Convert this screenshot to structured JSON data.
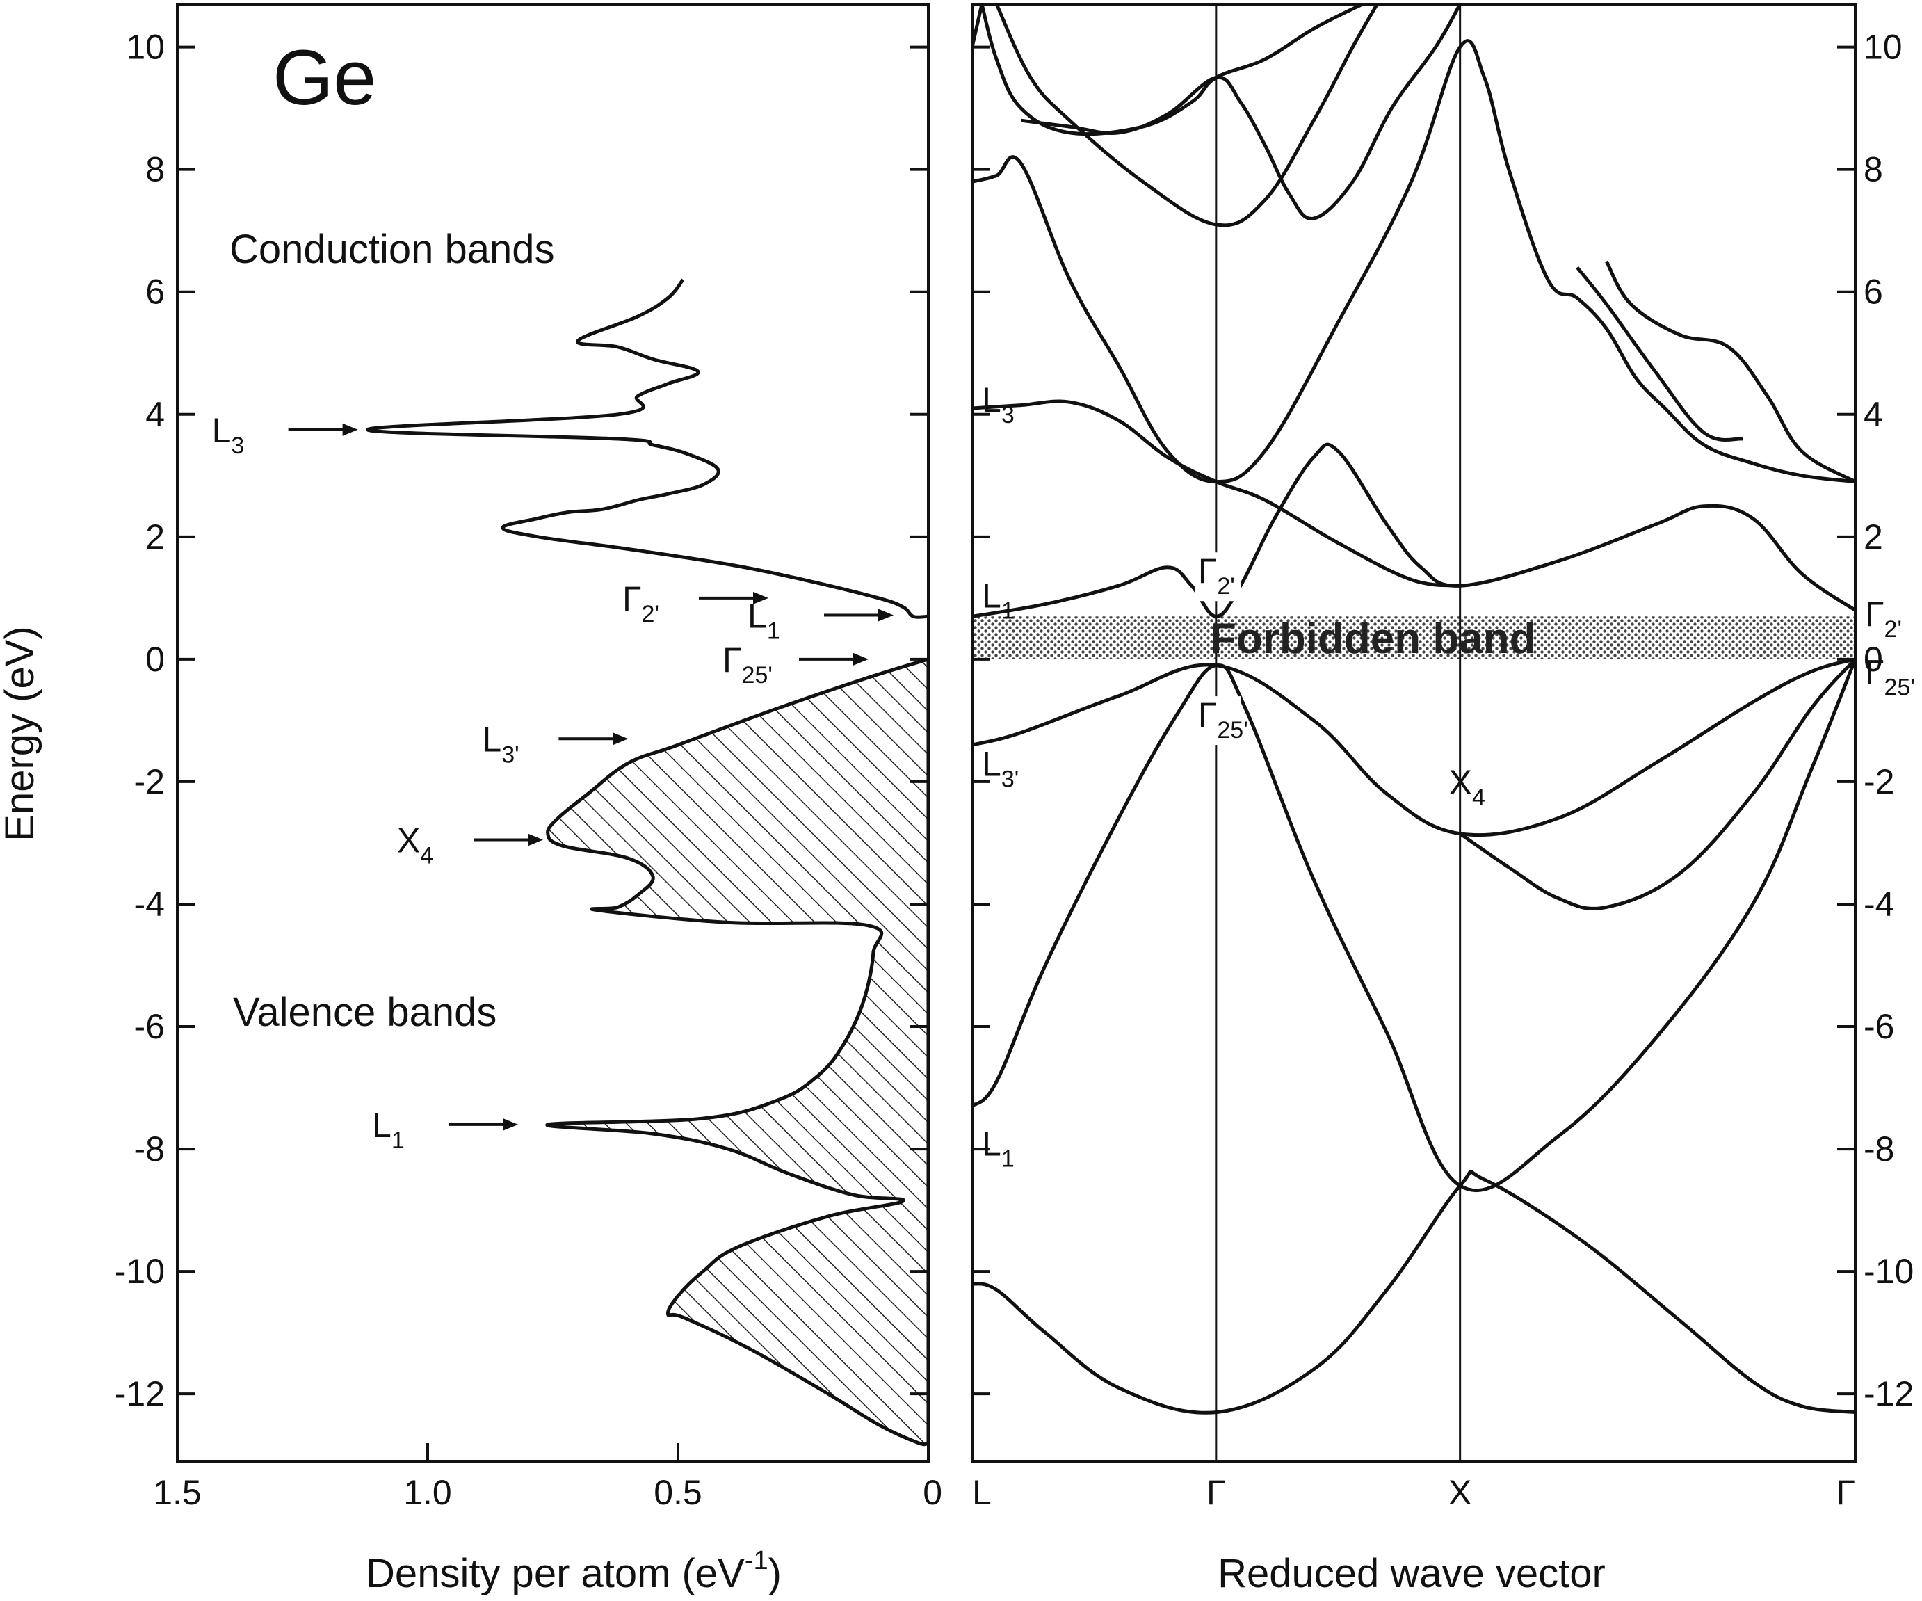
{
  "chart_data": [
    {
      "type": "area",
      "material": "Ge",
      "xlabel": "Density per atom (eV",
      "xlabel_sup": "-1",
      "xlabel_tail": ")",
      "ylabel": "Energy (eV)",
      "xlim": [
        1.5,
        0
      ],
      "ylim": [
        -13.1,
        10.7
      ],
      "x_ticks": [
        1.5,
        1.0,
        0.5,
        0
      ],
      "x_tick_labels": [
        "1.5",
        "1.0",
        "0.5",
        "0"
      ],
      "y_ticks": [
        10,
        8,
        6,
        4,
        2,
        0,
        -2,
        -4,
        -6,
        -8,
        -10,
        -12
      ],
      "y_tick_labels": [
        "10",
        "8",
        "6",
        "4",
        "2",
        "0",
        "-2",
        "-4",
        "-6",
        "-8",
        "-10",
        "-12"
      ],
      "region_labels": {
        "conduction": "Conduction bands",
        "valence": "Valence bands"
      },
      "series": [
        {
          "name": "conduction",
          "fill": "none",
          "points": [
            [
              0.49,
              6.2
            ],
            [
              0.52,
              5.9
            ],
            [
              0.58,
              5.6
            ],
            [
              0.7,
              5.2
            ],
            [
              0.62,
              5.1
            ],
            [
              0.55,
              4.9
            ],
            [
              0.46,
              4.7
            ],
            [
              0.52,
              4.5
            ],
            [
              0.58,
              4.3
            ],
            [
              0.62,
              4.0
            ],
            [
              1.12,
              3.75
            ],
            [
              0.62,
              3.6
            ],
            [
              0.55,
              3.5
            ],
            [
              0.48,
              3.35
            ],
            [
              0.42,
              3.1
            ],
            [
              0.45,
              2.85
            ],
            [
              0.52,
              2.7
            ],
            [
              0.58,
              2.6
            ],
            [
              0.65,
              2.45
            ],
            [
              0.72,
              2.4
            ],
            [
              0.78,
              2.3
            ],
            [
              0.85,
              2.15
            ],
            [
              0.78,
              2.0
            ],
            [
              0.6,
              1.8
            ],
            [
              0.4,
              1.55
            ],
            [
              0.25,
              1.3
            ],
            [
              0.1,
              1.0
            ],
            [
              0.05,
              0.85
            ],
            [
              0.03,
              0.7
            ],
            [
              0,
              0.7
            ]
          ]
        },
        {
          "name": "valence",
          "fill": "hatched",
          "points": [
            [
              0,
              0
            ],
            [
              0.12,
              -0.3
            ],
            [
              0.3,
              -0.8
            ],
            [
              0.5,
              -1.4
            ],
            [
              0.6,
              -1.7
            ],
            [
              0.68,
              -2.2
            ],
            [
              0.74,
              -2.6
            ],
            [
              0.76,
              -2.85
            ],
            [
              0.73,
              -3.05
            ],
            [
              0.6,
              -3.25
            ],
            [
              0.55,
              -3.55
            ],
            [
              0.58,
              -3.85
            ],
            [
              0.62,
              -4.05
            ],
            [
              0.66,
              -4.1
            ],
            [
              0.4,
              -4.3
            ],
            [
              0.12,
              -4.35
            ],
            [
              0.11,
              -4.8
            ],
            [
              0.13,
              -5.6
            ],
            [
              0.17,
              -6.3
            ],
            [
              0.22,
              -6.8
            ],
            [
              0.3,
              -7.2
            ],
            [
              0.45,
              -7.5
            ],
            [
              0.76,
              -7.6
            ],
            [
              0.55,
              -7.75
            ],
            [
              0.4,
              -8.0
            ],
            [
              0.28,
              -8.4
            ],
            [
              0.15,
              -8.75
            ],
            [
              0.05,
              -8.85
            ],
            [
              0.2,
              -9.1
            ],
            [
              0.38,
              -9.6
            ],
            [
              0.45,
              -10.0
            ],
            [
              0.5,
              -10.4
            ],
            [
              0.52,
              -10.7
            ],
            [
              0.49,
              -10.75
            ],
            [
              0.36,
              -11.25
            ],
            [
              0.2,
              -12.0
            ],
            [
              0.1,
              -12.5
            ],
            [
              0.02,
              -12.8
            ],
            [
              0,
              -12.8
            ]
          ]
        }
      ],
      "critical_points": [
        {
          "letter": "L",
          "sub": "3",
          "x": 1.12,
          "y": 3.75
        },
        {
          "letter": "Γ",
          "sub": "2'",
          "x": 0.3,
          "y": 1.0
        },
        {
          "letter": "L",
          "sub": "1",
          "x": 0.05,
          "y": 0.72
        },
        {
          "letter": "Γ",
          "sub": "25'",
          "x": 0.1,
          "y": 0
        },
        {
          "letter": "L",
          "sub": "3'",
          "x": 0.58,
          "y": -1.3
        },
        {
          "letter": "X",
          "sub": "4",
          "x": 0.75,
          "y": -2.95
        },
        {
          "letter": "L",
          "sub": "1",
          "x": 0.8,
          "y": -7.6
        }
      ]
    },
    {
      "type": "line",
      "xlabel": "Reduced wave vector",
      "ylim": [
        -13.1,
        10.7
      ],
      "x_ticks": [
        0,
        0.5,
        1.0,
        1.81
      ],
      "x_tick_labels": [
        "L",
        "Γ",
        "X",
        "Γ"
      ],
      "y_ticks": [
        10,
        8,
        6,
        4,
        2,
        0,
        -2,
        -4,
        -6,
        -8,
        -10,
        -12
      ],
      "y_tick_labels": [
        "10",
        "8",
        "6",
        "4",
        "2",
        "0",
        "-2",
        "-4",
        "-6",
        "-8",
        "-10",
        "-12"
      ],
      "forbidden_band": {
        "label": "Forbidden band",
        "y0": 0,
        "y1": 0.7
      },
      "bands": [
        {
          "name": "v1",
          "points": [
            [
              0,
              -10.2
            ],
            [
              0.05,
              -10.3
            ],
            [
              0.15,
              -11.0
            ],
            [
              0.3,
              -11.9
            ],
            [
              0.5,
              -12.3
            ],
            [
              0.7,
              -11.6
            ],
            [
              0.85,
              -10.3
            ],
            [
              1.0,
              -8.6
            ],
            [
              1.05,
              -8.5
            ],
            [
              1.25,
              -9.5
            ],
            [
              1.45,
              -10.8
            ],
            [
              1.6,
              -11.8
            ],
            [
              1.7,
              -12.2
            ],
            [
              1.81,
              -12.3
            ]
          ]
        },
        {
          "name": "v2",
          "points": [
            [
              0,
              -7.3
            ],
            [
              0.05,
              -6.9
            ],
            [
              0.15,
              -5.0
            ],
            [
              0.3,
              -2.6
            ],
            [
              0.42,
              -0.9
            ],
            [
              0.5,
              -0.1
            ],
            [
              0.56,
              -0.8
            ],
            [
              0.7,
              -3.6
            ],
            [
              0.85,
              -6.1
            ],
            [
              1.0,
              -8.6
            ],
            [
              1.2,
              -7.8
            ],
            [
              1.4,
              -6.2
            ],
            [
              1.6,
              -4.0
            ],
            [
              1.72,
              -1.8
            ],
            [
              1.81,
              0
            ]
          ]
        },
        {
          "name": "v3",
          "points": [
            [
              0,
              -1.4
            ],
            [
              0.1,
              -1.2
            ],
            [
              0.3,
              -0.6
            ],
            [
              0.5,
              -0.1
            ],
            [
              0.7,
              -1.0
            ],
            [
              0.85,
              -2.2
            ],
            [
              1.0,
              -2.85
            ],
            [
              1.2,
              -2.6
            ],
            [
              1.4,
              -1.7
            ],
            [
              1.6,
              -0.7
            ],
            [
              1.72,
              -0.2
            ],
            [
              1.81,
              0
            ]
          ]
        },
        {
          "name": "v4",
          "points": [
            [
              1.0,
              -2.85
            ],
            [
              1.1,
              -3.4
            ],
            [
              1.2,
              -3.9
            ],
            [
              1.3,
              -4.05
            ],
            [
              1.45,
              -3.5
            ],
            [
              1.6,
              -2.2
            ],
            [
              1.72,
              -0.8
            ],
            [
              1.81,
              0
            ]
          ]
        },
        {
          "name": "c1",
          "points": [
            [
              0,
              0.7
            ],
            [
              0.15,
              0.9
            ],
            [
              0.3,
              1.2
            ],
            [
              0.4,
              1.5
            ],
            [
              0.45,
              1.2
            ],
            [
              0.5,
              0.7
            ],
            [
              0.55,
              1.2
            ],
            [
              0.62,
              2.3
            ],
            [
              0.7,
              3.3
            ],
            [
              0.75,
              3.4
            ],
            [
              0.85,
              2.2
            ],
            [
              0.92,
              1.5
            ],
            [
              1.0,
              1.2
            ],
            [
              1.2,
              1.6
            ],
            [
              1.4,
              2.2
            ],
            [
              1.5,
              2.5
            ],
            [
              1.6,
              2.3
            ],
            [
              1.7,
              1.4
            ],
            [
              1.81,
              0.8
            ]
          ]
        },
        {
          "name": "c2",
          "points": [
            [
              0,
              4.1
            ],
            [
              0.1,
              4.15
            ],
            [
              0.2,
              4.2
            ],
            [
              0.3,
              3.9
            ],
            [
              0.4,
              3.3
            ],
            [
              0.5,
              2.9
            ],
            [
              0.6,
              2.6
            ],
            [
              0.75,
              1.9
            ],
            [
              0.9,
              1.3
            ],
            [
              1.0,
              1.2
            ]
          ]
        },
        {
          "name": "c3",
          "points": [
            [
              0,
              7.8
            ],
            [
              0.05,
              7.9
            ],
            [
              0.1,
              8.1
            ],
            [
              0.2,
              6.2
            ],
            [
              0.3,
              4.8
            ],
            [
              0.4,
              3.4
            ],
            [
              0.5,
              2.9
            ],
            [
              0.6,
              3.4
            ],
            [
              0.75,
              5.5
            ],
            [
              0.9,
              7.8
            ],
            [
              1.0,
              10.0
            ],
            [
              1.05,
              9.5
            ],
            [
              1.1,
              8.0
            ],
            [
              1.18,
              6.2
            ],
            [
              1.24,
              5.9
            ],
            [
              1.3,
              5.4
            ],
            [
              1.36,
              4.6
            ],
            [
              1.42,
              4.1
            ],
            [
              1.5,
              3.5
            ],
            [
              1.6,
              3.2
            ],
            [
              1.7,
              3.0
            ],
            [
              1.81,
              2.9
            ]
          ]
        },
        {
          "name": "c4",
          "points": [
            [
              0,
              10.0
            ],
            [
              0.02,
              10.7
            ]
          ]
        },
        {
          "name": "c5",
          "points": [
            [
              0.02,
              10.7
            ],
            [
              0.05,
              9.8
            ],
            [
              0.1,
              9.0
            ],
            [
              0.2,
              8.6
            ],
            [
              0.35,
              8.7
            ],
            [
              0.45,
              9.1
            ],
            [
              0.5,
              9.5
            ],
            [
              0.6,
              9.8
            ],
            [
              0.7,
              10.3
            ],
            [
              0.8,
              10.7
            ]
          ]
        },
        {
          "name": "c6",
          "points": [
            [
              0.05,
              10.7
            ],
            [
              0.12,
              9.5
            ],
            [
              0.2,
              8.8
            ],
            [
              0.35,
              7.8
            ],
            [
              0.5,
              7.1
            ],
            [
              0.6,
              7.5
            ],
            [
              0.7,
              8.8
            ],
            [
              0.78,
              10.0
            ],
            [
              0.83,
              10.7
            ]
          ]
        },
        {
          "name": "c7",
          "points": [
            [
              0.1,
              8.8
            ],
            [
              0.2,
              8.7
            ],
            [
              0.3,
              8.6
            ],
            [
              0.4,
              8.9
            ],
            [
              0.5,
              9.5
            ],
            [
              0.55,
              9.1
            ],
            [
              0.6,
              8.4
            ],
            [
              0.65,
              7.6
            ],
            [
              0.7,
              7.2
            ],
            [
              0.78,
              7.8
            ],
            [
              0.86,
              9.0
            ],
            [
              0.95,
              10.0
            ],
            [
              1.0,
              10.7
            ]
          ]
        },
        {
          "name": "c8",
          "points": [
            [
              1.24,
              6.4
            ],
            [
              1.3,
              5.8
            ],
            [
              1.4,
              4.7
            ],
            [
              1.5,
              3.7
            ],
            [
              1.58,
              3.6
            ]
          ]
        },
        {
          "name": "c9",
          "points": [
            [
              1.3,
              6.5
            ],
            [
              1.35,
              5.8
            ],
            [
              1.45,
              5.3
            ],
            [
              1.55,
              5.1
            ],
            [
              1.63,
              4.3
            ],
            [
              1.7,
              3.4
            ],
            [
              1.81,
              2.9
            ]
          ]
        }
      ],
      "critical_points": [
        {
          "letter": "L",
          "sub": "3",
          "side": "left",
          "y": 4.25
        },
        {
          "letter": "L",
          "sub": "1",
          "side": "left",
          "y": 1.05
        },
        {
          "letter": "L",
          "sub": "3'",
          "side": "left",
          "y": -1.7
        },
        {
          "letter": "L",
          "sub": "1",
          "side": "left",
          "y": -7.9
        },
        {
          "letter": "Γ",
          "sub": "2'",
          "side": "gamma",
          "y": 1.45
        },
        {
          "letter": "Γ",
          "sub": "25'",
          "side": "gamma",
          "y": -0.9
        },
        {
          "letter": "X",
          "sub": "4",
          "side": "x",
          "y": -2.0
        },
        {
          "letter": "Γ",
          "sub": "2'",
          "side": "right",
          "y": 0.75
        },
        {
          "letter": "Γ",
          "sub": "25'",
          "side": "right",
          "y": -0.2
        }
      ]
    }
  ]
}
